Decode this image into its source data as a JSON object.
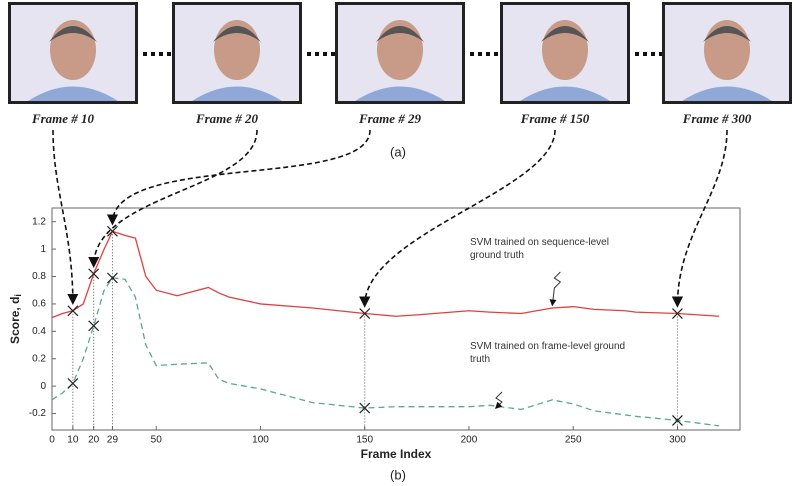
{
  "frames": [
    {
      "label": "Frame # 10"
    },
    {
      "label": "Frame # 20"
    },
    {
      "label": "Frame # 29"
    },
    {
      "label": "Frame # 150"
    },
    {
      "label": "Frame # 300"
    }
  ],
  "captions": {
    "a": "(a)",
    "b": "(b)"
  },
  "chart_data": {
    "type": "line",
    "xlabel": "Frame Index",
    "ylabel": "Score, d",
    "ylabel_sub": "i",
    "xlim": [
      0,
      330
    ],
    "ylim": [
      -0.32,
      1.3
    ],
    "xticks": [
      0,
      10,
      20,
      29,
      50,
      100,
      150,
      200,
      250,
      300
    ],
    "yticks": [
      -0.2,
      0,
      0.2,
      0.4,
      0.6,
      0.8,
      1,
      1.2
    ],
    "marked_x": [
      10,
      20,
      29,
      150,
      300
    ],
    "x": [
      0,
      5,
      10,
      15,
      20,
      25,
      29,
      35,
      40,
      45,
      50,
      60,
      75,
      80,
      85,
      100,
      125,
      150,
      165,
      175,
      200,
      210,
      225,
      240,
      250,
      260,
      275,
      280,
      300,
      320
    ],
    "series": [
      {
        "name": "SVM trained on sequence-level ground truth",
        "color": "#e04040",
        "dash": false,
        "values": [
          0.5,
          0.53,
          0.55,
          0.6,
          0.82,
          1.0,
          1.13,
          1.1,
          1.08,
          0.8,
          0.7,
          0.66,
          0.72,
          0.68,
          0.65,
          0.6,
          0.57,
          0.53,
          0.51,
          0.52,
          0.55,
          0.54,
          0.53,
          0.57,
          0.58,
          0.56,
          0.55,
          0.54,
          0.53,
          0.51
        ]
      },
      {
        "name": "SVM trained on frame-level ground truth",
        "color": "#5aaa88",
        "dash": true,
        "values": [
          -0.1,
          -0.05,
          0.02,
          0.2,
          0.44,
          0.7,
          0.79,
          0.78,
          0.65,
          0.3,
          0.15,
          0.16,
          0.17,
          0.05,
          0.02,
          -0.02,
          -0.12,
          -0.16,
          -0.15,
          -0.15,
          -0.15,
          -0.14,
          -0.17,
          -0.1,
          -0.13,
          -0.18,
          -0.21,
          -0.22,
          -0.25,
          -0.29
        ]
      }
    ]
  }
}
